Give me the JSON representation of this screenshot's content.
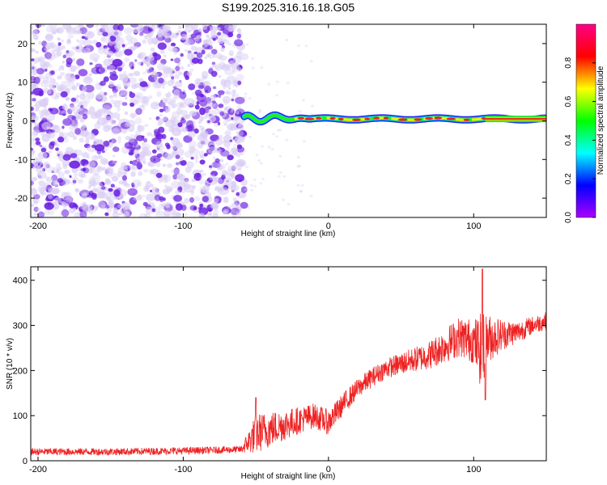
{
  "title": "S199.2025.316.16.18.G05",
  "colors": {
    "snr_line": "#ee2222",
    "noise_low": "#d8ccf4",
    "noise_high": "#6a1ee0",
    "ridge_core": "#ee2222",
    "ridge_edge": "#2222ee"
  },
  "colormap": [
    "#aa00ff",
    "#0000ff",
    "#00ffff",
    "#00ff00",
    "#ffff00",
    "#ff0000",
    "#ff0088"
  ],
  "chart_data": [
    {
      "type": "heatmap",
      "name": "spectrogram",
      "xlabel": "Height of straight line (km)",
      "ylabel": "Frequency (Hz)",
      "xlim": [
        -205,
        150
      ],
      "ylim": [
        -25,
        25
      ],
      "xticks": [
        -200,
        -100,
        0,
        100
      ],
      "yticks": [
        -20,
        -10,
        0,
        10,
        20
      ],
      "noise_region_x": [
        -205,
        -58
      ],
      "ridge_start_x": -58,
      "ridge_frequency_hz": 0.5,
      "colorbar": {
        "label": "Normalized spectral amplitude",
        "range": [
          0.0,
          1.0
        ],
        "ticks": [
          "0.0",
          "0.2",
          "0.4",
          "0.6",
          "0.8"
        ]
      }
    },
    {
      "type": "line",
      "name": "snr",
      "xlabel": "Height of straight line (km)",
      "ylabel": "SNR (10 * v/v)",
      "xlim": [
        -205,
        150
      ],
      "ylim": [
        0,
        430
      ],
      "xticks": [
        -200,
        -100,
        0,
        100
      ],
      "yticks": [
        0,
        100,
        200,
        300,
        400
      ],
      "series": [
        {
          "name": "SNR trend",
          "x": [
            -205,
            -150,
            -100,
            -60,
            -50,
            -40,
            -30,
            -20,
            -10,
            0,
            10,
            20,
            30,
            40,
            50,
            60,
            70,
            80,
            90,
            100,
            106,
            110,
            120,
            130,
            140,
            150
          ],
          "y": [
            20,
            20,
            22,
            25,
            60,
            70,
            80,
            90,
            100,
            85,
            125,
            160,
            185,
            205,
            215,
            225,
            235,
            255,
            275,
            265,
            240,
            270,
            280,
            285,
            300,
            310
          ],
          "noise_amplitude": [
            8,
            8,
            8,
            8,
            45,
            40,
            35,
            30,
            28,
            28,
            25,
            22,
            22,
            22,
            25,
            28,
            32,
            38,
            45,
            50,
            90,
            55,
            35,
            25,
            20,
            20
          ],
          "spikes": [
            {
              "x": 106,
              "y": 425
            },
            {
              "x": 108,
              "y": 135
            },
            {
              "x": -50,
              "y": 140
            }
          ]
        }
      ]
    }
  ]
}
